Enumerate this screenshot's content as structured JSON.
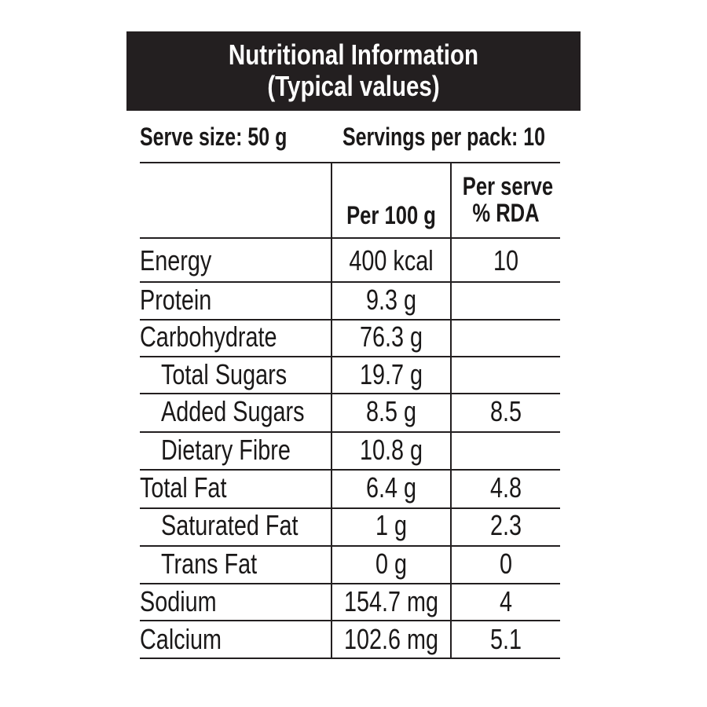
{
  "header": {
    "title_line1": "Nutritional Information",
    "title_line2": "(Typical values)"
  },
  "serving": {
    "serve_size": "Serve size: 50 g",
    "servings_per_pack": "Servings per pack: 10"
  },
  "columns": {
    "per_100g": "Per 100 g",
    "per_serve_line1": "Per serve",
    "per_serve_line2": "% RDA"
  },
  "rows": [
    {
      "name": "Energy",
      "per_100g": "400 kcal",
      "rda": "10"
    },
    {
      "name": "Protein",
      "per_100g": "9.3 g",
      "rda": ""
    },
    {
      "name": "Carbohydrate",
      "per_100g": "76.3 g",
      "rda": ""
    },
    {
      "name": "Total Sugars",
      "per_100g": "19.7 g",
      "rda": ""
    },
    {
      "name": "Added Sugars",
      "per_100g": "8.5 g",
      "rda": "8.5"
    },
    {
      "name": "Dietary Fibre",
      "per_100g": "10.8 g",
      "rda": ""
    },
    {
      "name": "Total Fat",
      "per_100g": "6.4 g",
      "rda": "4.8"
    },
    {
      "name": "Saturated Fat",
      "per_100g": "1 g",
      "rda": "2.3"
    },
    {
      "name": "Trans Fat",
      "per_100g": "0 g",
      "rda": "0"
    },
    {
      "name": "Sodium",
      "per_100g": "154.7 mg",
      "rda": "4"
    },
    {
      "name": "Calcium",
      "per_100g": "102.6 mg",
      "rda": "5.1"
    }
  ]
}
